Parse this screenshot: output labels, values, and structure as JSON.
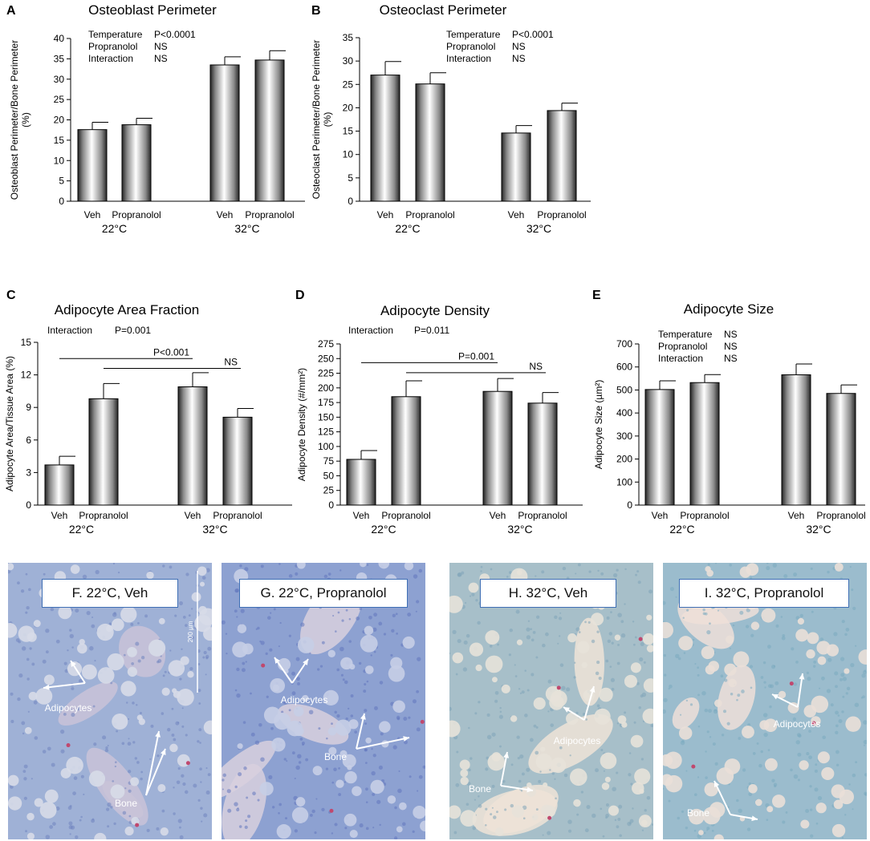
{
  "panels": [
    {
      "letter": "A",
      "chart_data": {
        "type": "bar",
        "title": "Osteoblast Perimeter",
        "ylabel": [
          "Osteoblast Perimeter/Bone Perimeter",
          "(%)"
        ],
        "ylim": [
          0,
          40
        ],
        "yticks": [
          "0",
          "5",
          "10",
          "15",
          "20",
          "25",
          "30",
          "35",
          "40"
        ],
        "categories": [
          "Veh",
          "Propranolol",
          "Veh",
          "Propranolol"
        ],
        "groups": [
          "22°C",
          "32°C"
        ],
        "values": [
          17.6,
          18.8,
          33.5,
          34.7
        ],
        "errors": [
          1.8,
          1.6,
          2.0,
          2.3
        ],
        "stats": [
          [
            "Temperature",
            "P<0.0001"
          ],
          [
            "Propranolol",
            "NS"
          ],
          [
            "Interaction",
            "NS"
          ]
        ],
        "comparisons": []
      }
    },
    {
      "letter": "B",
      "chart_data": {
        "type": "bar",
        "title": "Osteoclast Perimeter",
        "ylabel": [
          "Osteoclast Perimeter/Bone Perimeter",
          "(%)"
        ],
        "ylim": [
          0,
          35
        ],
        "yticks": [
          "0",
          "5",
          "10",
          "15",
          "20",
          "25",
          "30",
          "35"
        ],
        "categories": [
          "Veh",
          "Propranolol",
          "Veh",
          "Propranolol"
        ],
        "groups": [
          "22°C",
          "32°C"
        ],
        "values": [
          27.0,
          25.1,
          14.6,
          19.4
        ],
        "errors": [
          2.9,
          2.4,
          1.6,
          1.6
        ],
        "stats": [
          [
            "Temperature",
            "P<0.0001"
          ],
          [
            "Propranolol",
            "NS"
          ],
          [
            "Interaction",
            "NS"
          ]
        ],
        "comparisons": []
      }
    },
    {
      "letter": "C",
      "chart_data": {
        "type": "bar",
        "title": "Adipocyte Area Fraction",
        "ylabel": [
          "Adipocyte Area/Tissue Area (%)"
        ],
        "ylim": [
          0,
          15
        ],
        "yticks": [
          "0",
          "3",
          "6",
          "9",
          "12",
          "15"
        ],
        "categories": [
          "Veh",
          "Propranolol",
          "Veh",
          "Propranolol"
        ],
        "groups": [
          "22°C",
          "32°C"
        ],
        "values": [
          3.7,
          9.8,
          10.9,
          8.1
        ],
        "errors": [
          0.8,
          1.4,
          1.3,
          0.8
        ],
        "stats": [
          [
            "Interaction",
            "P=0.001"
          ]
        ],
        "comparisons": [
          {
            "from": 0,
            "to": 2,
            "label": "P<0.001",
            "y": 13.5
          },
          {
            "from": 1,
            "to": 3,
            "label": "NS",
            "y": 12.6
          }
        ]
      }
    },
    {
      "letter": "D",
      "chart_data": {
        "type": "bar",
        "title": "Adipocyte Density",
        "ylabel": [
          "Adipocyte Density (#/mm²)"
        ],
        "ylim": [
          0,
          275
        ],
        "yticks": [
          "0",
          "25",
          "50",
          "75",
          "100",
          "125",
          "150",
          "175",
          "200",
          "225",
          "250",
          "275"
        ],
        "categories": [
          "Veh",
          "Propranolol",
          "Veh",
          "Propranolol"
        ],
        "groups": [
          "22°C",
          "32°C"
        ],
        "values": [
          78,
          185,
          194,
          174
        ],
        "errors": [
          15,
          27,
          22,
          18
        ],
        "stats": [
          [
            "Interaction",
            "P=0.011"
          ]
        ],
        "comparisons": [
          {
            "from": 0,
            "to": 2,
            "label": "P=0.001",
            "y": 243
          },
          {
            "from": 1,
            "to": 3,
            "label": "NS",
            "y": 226
          }
        ]
      }
    },
    {
      "letter": "E",
      "chart_data": {
        "type": "bar",
        "title": "Adipocyte Size",
        "ylabel": [
          "Adipocyte Size (µm²)"
        ],
        "ylim": [
          0,
          700
        ],
        "yticks": [
          "0",
          "100",
          "200",
          "300",
          "400",
          "500",
          "600",
          "700"
        ],
        "categories": [
          "Veh",
          "Propranolol",
          "Veh",
          "Propranolol"
        ],
        "groups": [
          "22°C",
          "32°C"
        ],
        "values": [
          502,
          532,
          566,
          485
        ],
        "errors": [
          38,
          35,
          47,
          37
        ],
        "stats": [
          [
            "Temperature",
            "NS"
          ],
          [
            "Propranolol",
            "NS"
          ],
          [
            "Interaction",
            "NS"
          ]
        ],
        "comparisons": []
      }
    }
  ],
  "micrographs": [
    {
      "title": "F. 22°C, Veh",
      "adipocytes_label": "Adipocytes",
      "bone_label": "Bone",
      "scale_label": "200 µm",
      "bg": "#9fb1d6"
    },
    {
      "title": "G. 22°C, Propranolol",
      "adipocytes_label": "Adipocytes",
      "bone_label": "Bone",
      "bg": "#8da1d1"
    },
    {
      "title": "H. 32°C, Veh",
      "adipocytes_label": "Adipocytes",
      "bone_label": "Bone",
      "bg": "#a7bfc9"
    },
    {
      "title": "I. 32°C, Propranolol",
      "adipocytes_label": "Adipocytes",
      "bone_label": "Bone",
      "bg": "#9bbccd"
    }
  ]
}
